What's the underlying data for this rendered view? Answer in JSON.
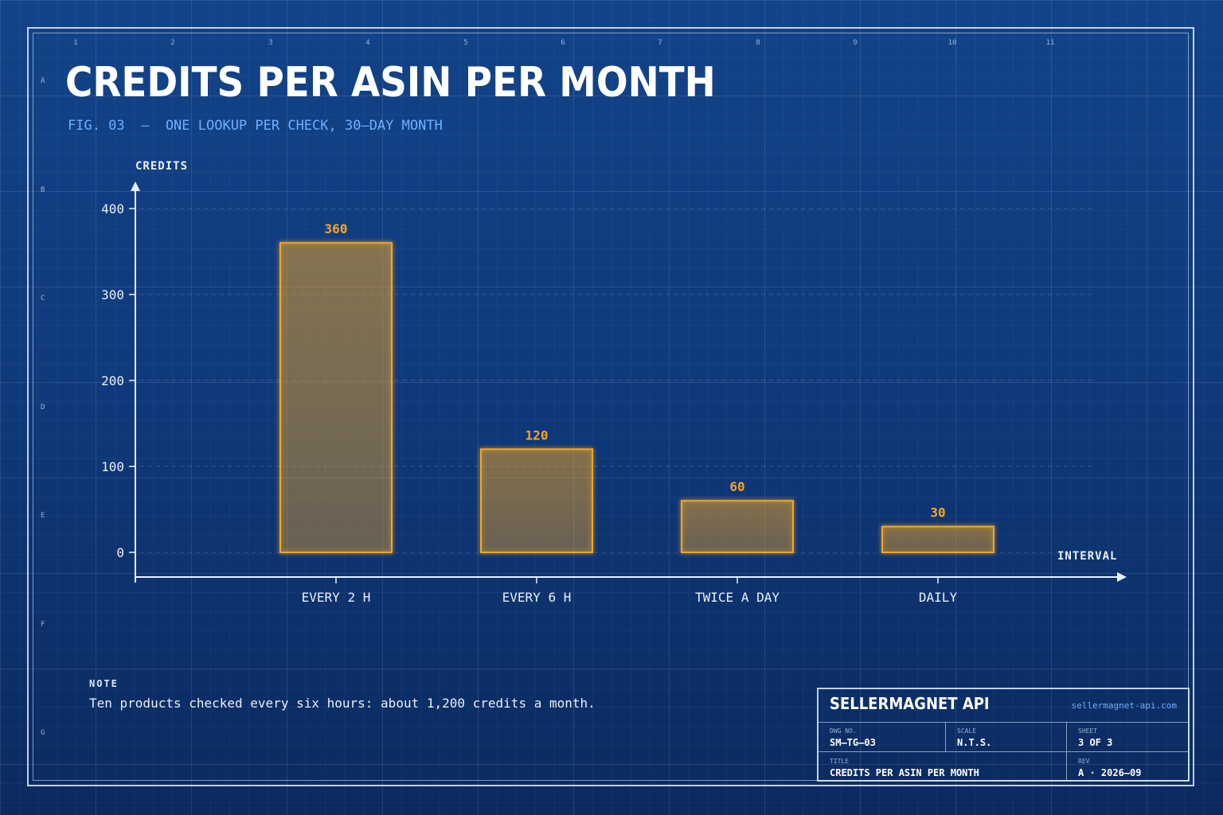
{
  "title": "CREDITS PER ASIN PER MONTH",
  "subtitle": "FIG. 03  —  ONE LOOKUP PER CHECK, 30–DAY MONTH",
  "zones": {
    "columns": [
      "1",
      "2",
      "3",
      "4",
      "5",
      "6",
      "7",
      "8",
      "9",
      "10",
      "11"
    ],
    "rows": [
      "A",
      "B",
      "C",
      "D",
      "E",
      "F",
      "G"
    ]
  },
  "chart_data": {
    "type": "bar",
    "ylabel": "CREDITS",
    "xlabel": "INTERVAL",
    "categories": [
      "EVERY 2 H",
      "EVERY 6 H",
      "TWICE A DAY",
      "DAILY"
    ],
    "values": [
      360,
      120,
      60,
      30
    ],
    "data_labels": [
      "360",
      "120",
      "60",
      "30"
    ],
    "ylim": [
      0,
      400
    ],
    "yticks": [
      0,
      100,
      200,
      300,
      400
    ],
    "grid": "horizontal dashed",
    "bar_color": "#f5a623"
  },
  "note": {
    "heading": "NOTE",
    "text": "Ten products checked every six hours: about 1,200 credits a month."
  },
  "title_block": {
    "brand": "SELLERMAGNET API",
    "url": "sellermagnet-api.com",
    "dwg_no_label": "DWG NO.",
    "dwg_no": "SM–TG–03",
    "scale_label": "SCALE",
    "scale": "N.T.S.",
    "sheet_label": "SHEET",
    "sheet": "3 OF 3",
    "title_label": "TITLE",
    "title": "CREDITS PER ASIN PER MONTH",
    "rev_label": "REV",
    "rev": "A · 2026–09"
  },
  "colors": {
    "background": "#0f3a7c",
    "accent": "#f5a623",
    "subtitle": "#6fb0ff"
  }
}
